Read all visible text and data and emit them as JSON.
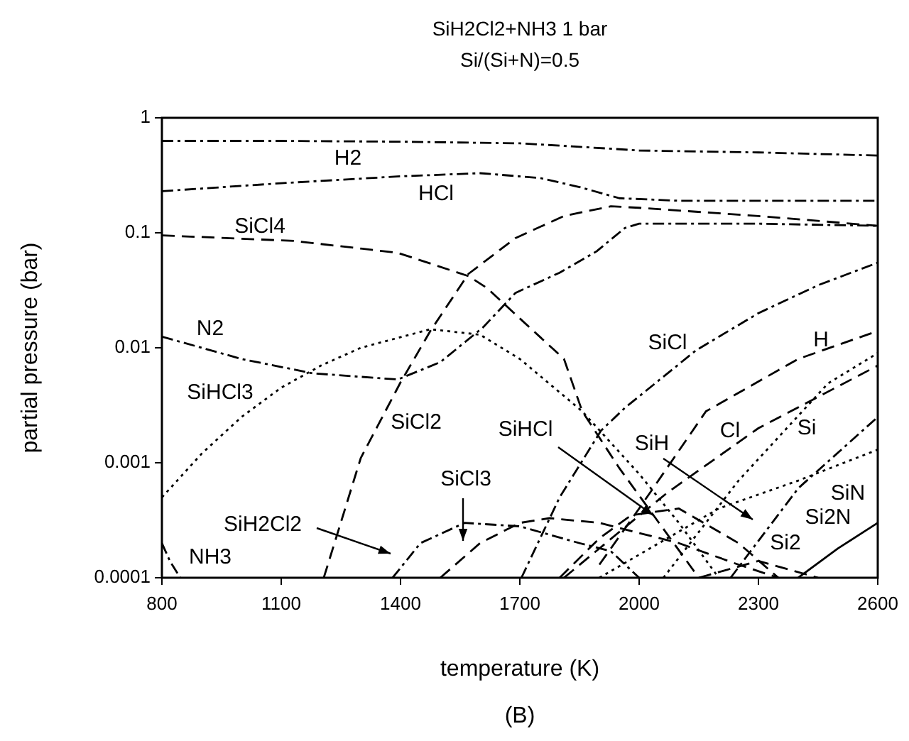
{
  "chart_data": {
    "type": "line",
    "title": "SiH2Cl2+NH3 1 bar",
    "subtitle": "Si/(Si+N)=0.5",
    "xlabel": "temperature (K)",
    "ylabel": "partial pressure (bar)",
    "log": "y",
    "grid": false,
    "legend": false,
    "marker": "none",
    "xlim": [
      800,
      2600
    ],
    "xticks": [
      800,
      1100,
      1400,
      1700,
      2000,
      2300,
      2600
    ],
    "ylim": [
      0.0001,
      1
    ],
    "yticks": [
      0.0001,
      0.001,
      0.01,
      0.1,
      1
    ],
    "series": [
      {
        "name": "H2",
        "color": "#000000",
        "line_style": "dashdot",
        "x": [
          800,
          1100,
          1400,
          1700,
          1850,
          2000,
          2300,
          2600
        ],
        "values": [
          0.63,
          0.63,
          0.62,
          0.6,
          0.56,
          0.52,
          0.5,
          0.47
        ]
      },
      {
        "name": "HCl",
        "color": "#000000",
        "line_style": "dashdot",
        "x": [
          800,
          1100,
          1400,
          1600,
          1750,
          1850,
          1950,
          2100,
          2600
        ],
        "values": [
          0.23,
          0.27,
          0.31,
          0.33,
          0.3,
          0.25,
          0.2,
          0.19,
          0.19
        ]
      },
      {
        "name": "SiCl4",
        "color": "#000000",
        "line_style": "dashed",
        "x": [
          800,
          1132,
          1393,
          1571,
          1618,
          1700,
          1811,
          1857,
          1950,
          2050,
          2150
        ],
        "values": [
          0.095,
          0.085,
          0.067,
          0.042,
          0.033,
          0.018,
          0.008,
          0.0028,
          0.0009,
          0.0003,
          0.0001
        ]
      },
      {
        "name": "N2",
        "color": "#000000",
        "line_style": "dashdot",
        "x": [
          800,
          1000,
          1179,
          1393,
          1500,
          1607,
          1689,
          1800,
          1893,
          1964,
          2000,
          2300,
          2600
        ],
        "values": [
          0.0125,
          0.008,
          0.006,
          0.0053,
          0.0075,
          0.015,
          0.03,
          0.045,
          0.069,
          0.11,
          0.12,
          0.12,
          0.115
        ]
      },
      {
        "name": "SiHCl3",
        "color": "#000000",
        "line_style": "dotted",
        "x": [
          800,
          900,
          1000,
          1100,
          1200,
          1300,
          1475,
          1600,
          1700,
          1857,
          2000,
          2100,
          2200
        ],
        "values": [
          0.0005,
          0.0012,
          0.0025,
          0.0045,
          0.007,
          0.01,
          0.0145,
          0.013,
          0.008,
          0.0028,
          0.0008,
          0.0003,
          0.0001
        ]
      },
      {
        "name": "SiCl2",
        "color": "#000000",
        "line_style": "dashed",
        "x": [
          1207,
          1300,
          1400,
          1475,
          1571,
          1689,
          1811,
          1929,
          2000,
          2300,
          2600
        ],
        "values": [
          0.0001,
          0.0011,
          0.005,
          0.014,
          0.044,
          0.09,
          0.14,
          0.17,
          0.165,
          0.14,
          0.115
        ]
      },
      {
        "name": "SiH2Cl2",
        "color": "#000000",
        "line_style": "dashdot",
        "x": [
          1380,
          1450,
          1561,
          1700,
          1850,
          1929,
          2000
        ],
        "values": [
          0.0001,
          0.0002,
          0.0003,
          0.00028,
          0.0002,
          0.00017,
          0.0001
        ]
      },
      {
        "name": "SiCl3",
        "color": "#000000",
        "line_style": "dashed",
        "x": [
          1500,
          1600,
          1700,
          1775,
          1900,
          2100,
          2250,
          2350
        ],
        "values": [
          0.0001,
          0.0002,
          0.0003,
          0.00033,
          0.0003,
          0.0002,
          0.00013,
          0.0001
        ]
      },
      {
        "name": "NH3",
        "color": "#000000",
        "line_style": "dashdot",
        "x": [
          800,
          820,
          846
        ],
        "values": [
          0.0002,
          0.00014,
          0.0001
        ]
      },
      {
        "name": "SiCl",
        "color": "#000000",
        "line_style": "dashdot",
        "x": [
          1704,
          1800,
          1904,
          1964,
          2143,
          2300,
          2450,
          2600
        ],
        "values": [
          0.0001,
          0.0005,
          0.0019,
          0.003,
          0.0095,
          0.02,
          0.035,
          0.055
        ]
      },
      {
        "name": "H",
        "color": "#000000",
        "line_style": "dashed",
        "x": [
          1900,
          2000,
          2168,
          2400,
          2600
        ],
        "values": [
          0.00013,
          0.0004,
          0.0028,
          0.008,
          0.014
        ]
      },
      {
        "name": "Cl",
        "color": "#000000",
        "line_style": "dashed",
        "x": [
          1811,
          1950,
          2071,
          2300,
          2600
        ],
        "values": [
          0.0001,
          0.00025,
          0.00055,
          0.002,
          0.007
        ]
      },
      {
        "name": "SiHCl",
        "color": "#000000",
        "line_style": "dashed",
        "x": [
          1800,
          1900,
          1980,
          2100,
          2250,
          2350
        ],
        "values": [
          0.0001,
          0.00022,
          0.00035,
          0.0004,
          0.0002,
          0.0001
        ]
      },
      {
        "name": "SiH",
        "color": "#000000",
        "line_style": "dashdot",
        "x": [
          2230,
          2400,
          2600
        ],
        "values": [
          0.0001,
          0.0006,
          0.0025
        ]
      },
      {
        "name": "Si",
        "color": "#000000",
        "line_style": "dotted",
        "x": [
          2061,
          2250,
          2475,
          2600
        ],
        "values": [
          0.0001,
          0.0007,
          0.0049,
          0.009
        ]
      },
      {
        "name": "SiN",
        "color": "#000000",
        "line_style": "dotted",
        "x": [
          1900,
          2050,
          2200,
          2400,
          2600
        ],
        "values": [
          0.0001,
          0.0002,
          0.0004,
          0.0007,
          0.0013
        ]
      },
      {
        "name": "Si2N",
        "color": "#000000",
        "line_style": "solid",
        "x": [
          2400,
          2500,
          2600
        ],
        "values": [
          0.0001,
          0.00018,
          0.0003
        ]
      },
      {
        "name": "Si2",
        "color": "#000000",
        "line_style": "dashed",
        "x": [
          2150,
          2300,
          2450
        ],
        "values": [
          0.0001,
          0.00014,
          0.0001
        ]
      }
    ],
    "annotations": [
      "(B)"
    ]
  }
}
